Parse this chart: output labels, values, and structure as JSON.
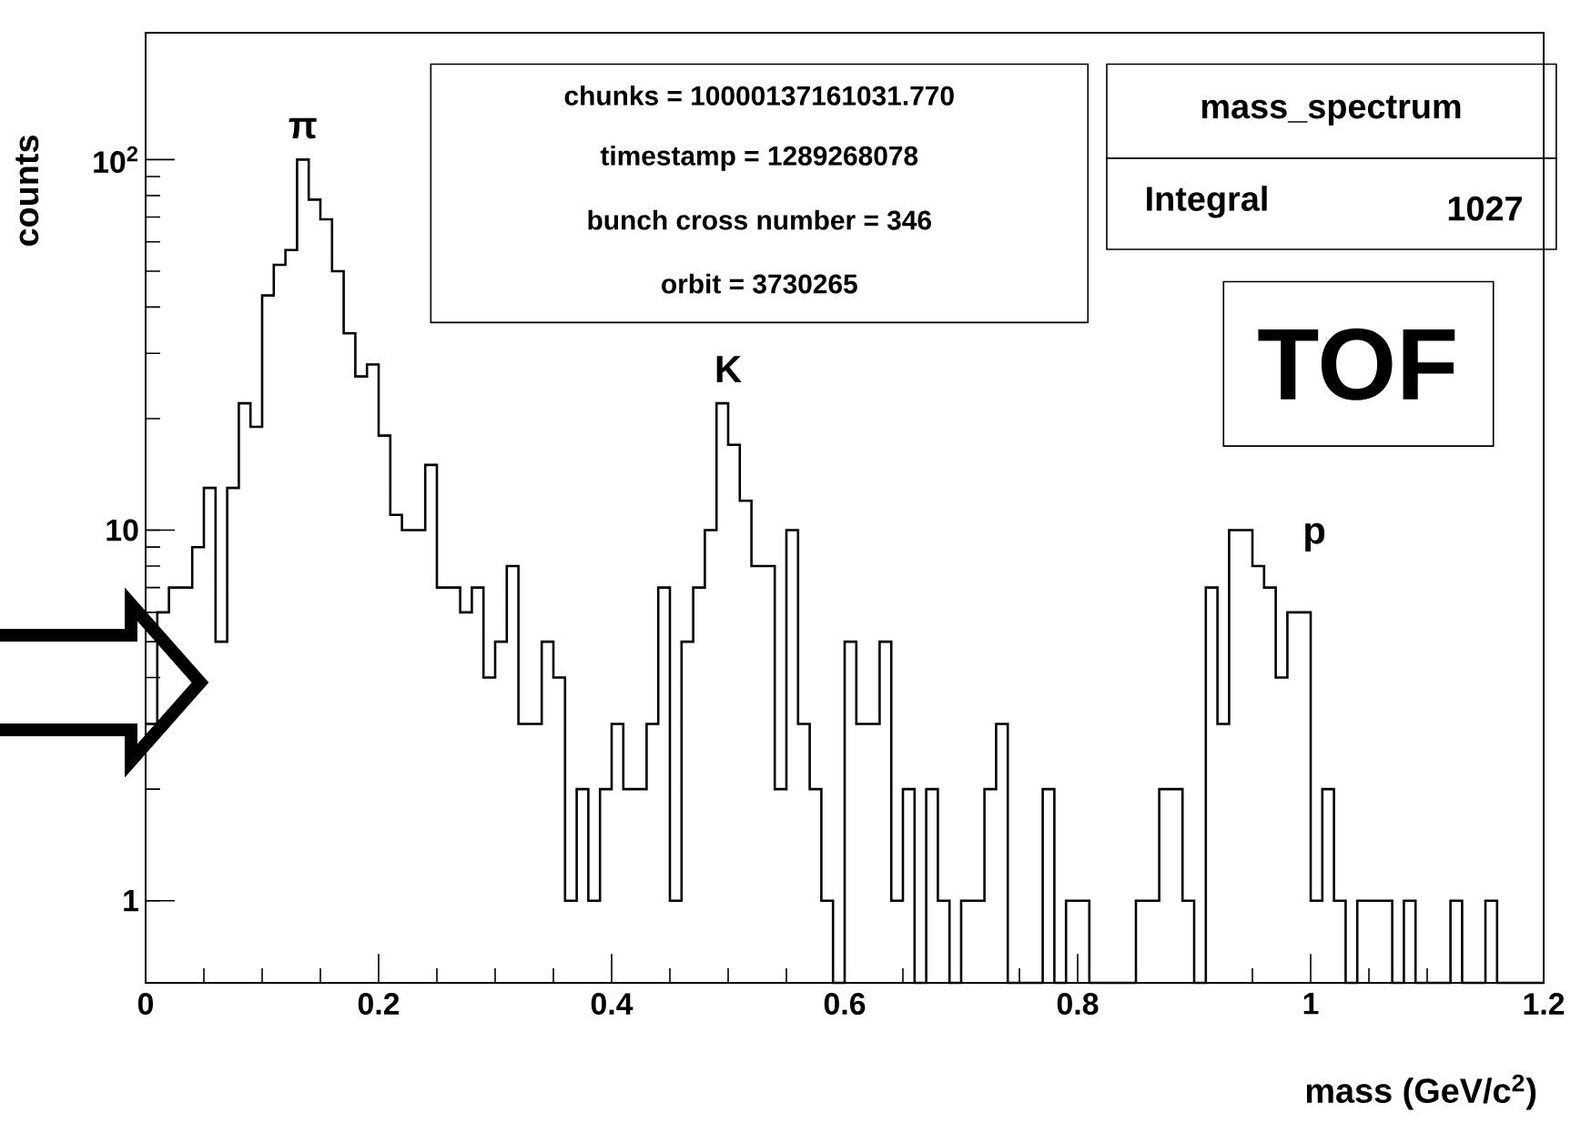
{
  "chart_data": {
    "type": "histogram",
    "bins": [
      0,
      0.01,
      0.02,
      0.03,
      0.04,
      0.05,
      0.06,
      0.07,
      0.08,
      0.09,
      0.1,
      0.11,
      0.12,
      0.13,
      0.14,
      0.15,
      0.16,
      0.17,
      0.18,
      0.19,
      0.2,
      0.21,
      0.22,
      0.23,
      0.24,
      0.25,
      0.26,
      0.27,
      0.28,
      0.29,
      0.3,
      0.31,
      0.32,
      0.33,
      0.34,
      0.35,
      0.36,
      0.37,
      0.38,
      0.39,
      0.4,
      0.41,
      0.42,
      0.43,
      0.44,
      0.45,
      0.46,
      0.47,
      0.48,
      0.49,
      0.5,
      0.51,
      0.52,
      0.53,
      0.54,
      0.55,
      0.56,
      0.57,
      0.58,
      0.59,
      0.6,
      0.61,
      0.62,
      0.63,
      0.64,
      0.65,
      0.66,
      0.67,
      0.68,
      0.69,
      0.7,
      0.71,
      0.72,
      0.73,
      0.74,
      0.75,
      0.76,
      0.77,
      0.78,
      0.79,
      0.8,
      0.81,
      0.82,
      0.83,
      0.84,
      0.85,
      0.86,
      0.87,
      0.88,
      0.89,
      0.9,
      0.91,
      0.92,
      0.93,
      0.94,
      0.95,
      0.96,
      0.97,
      0.98,
      0.99,
      1.0,
      1.01,
      1.02,
      1.03,
      1.04,
      1.05,
      1.06,
      1.07,
      1.08,
      1.09,
      1.1,
      1.11,
      1.12,
      1.13,
      1.14,
      1.15,
      1.16,
      1.17,
      1.18,
      1.19,
      1.2
    ],
    "values": [
      3,
      6,
      7,
      7,
      9,
      13,
      5,
      13,
      22,
      19,
      43,
      52,
      57,
      100,
      78,
      69,
      50,
      34,
      26,
      28,
      18,
      11,
      10,
      10,
      15,
      7,
      7,
      6,
      7,
      4,
      5,
      8,
      3,
      3,
      5,
      4,
      1,
      2,
      1,
      2,
      3,
      2,
      2,
      3,
      7,
      1,
      5,
      7,
      10,
      22,
      17,
      12,
      8,
      8,
      2,
      10,
      3,
      2,
      1,
      null,
      5,
      3,
      3,
      5,
      1,
      2,
      null,
      2,
      1,
      null,
      1,
      1,
      2,
      3,
      null,
      null,
      null,
      2,
      null,
      1,
      1,
      null,
      null,
      null,
      null,
      1,
      1,
      2,
      2,
      1,
      null,
      7,
      3,
      10,
      10,
      8,
      7,
      4,
      6,
      6,
      1,
      2,
      1,
      null,
      1,
      1,
      1,
      null,
      1,
      null,
      null,
      null,
      1,
      null,
      null,
      1,
      null,
      null,
      null,
      null
    ],
    "color": "#000000",
    "xlabel": "mass (GeV/c$^{2}$)",
    "ylabel": "counts",
    "xlim": [
      0,
      1.2
    ],
    "ylim": [
      0.6,
      220
    ],
    "log": true,
    "xticks": [
      0,
      0.2,
      0.4,
      0.6,
      0.8,
      1,
      1.2
    ],
    "yticks": [
      1,
      10,
      {
        "value": 100,
        "label": "10$^{2}$"
      }
    ],
    "annotations": [
      {
        "text": "π",
        "x": 0.135,
        "y": 100
      },
      {
        "text": "K",
        "x": 0.5,
        "y": 22
      },
      "p",
      "chunks = 10000137161031.770",
      "timestamp = 1289268078",
      "bunch cross number = 346",
      "orbit = 3730265",
      "mass_spectrum",
      "Integral",
      "1027",
      "TOF"
    ]
  }
}
